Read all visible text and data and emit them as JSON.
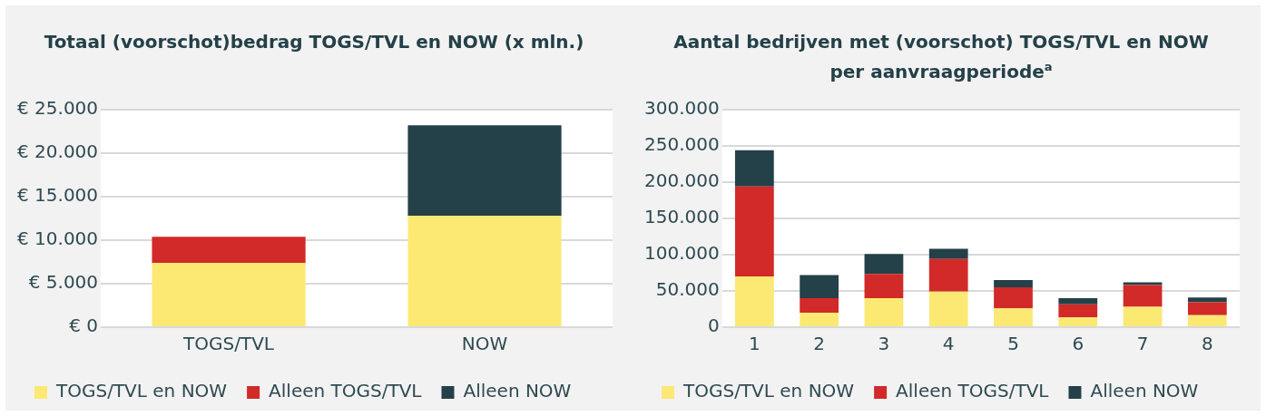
{
  "chart_data": [
    {
      "type": "bar",
      "title": "Totaal (voorschot)bedrag TOGS/TVL en NOW (x mln.)",
      "categories": [
        "TOGS/TVL",
        "NOW"
      ],
      "stacked": true,
      "grid": "y",
      "legend": "bottom",
      "ylim": [
        0,
        25000
      ],
      "yticks": [
        {
          "value": 0,
          "label": "€ 0"
        },
        {
          "value": 5000,
          "label": "€ 5.000"
        },
        {
          "value": 10000,
          "label": "€ 10.000"
        },
        {
          "value": 15000,
          "label": "€ 15.000"
        },
        {
          "value": 20000,
          "label": "€ 20.000"
        },
        {
          "value": 25000,
          "label": "€ 25.000"
        }
      ],
      "series": [
        {
          "name": "TOGS/TVL en NOW",
          "color": "#fbe974",
          "values": [
            7400,
            12800
          ]
        },
        {
          "name": "Alleen TOGS/TVL",
          "color": "#d12a28",
          "values": [
            3000,
            0
          ]
        },
        {
          "name": "Alleen NOW",
          "color": "#244048",
          "values": [
            0,
            10400
          ]
        }
      ]
    },
    {
      "type": "bar",
      "title": "Aantal bedrijven met (voorschot) TOGS/TVL en NOW per aanvraagperiode$^{a}$",
      "categories": [
        "1",
        "2",
        "3",
        "4",
        "5",
        "6",
        "7",
        "8"
      ],
      "stacked": true,
      "grid": "y",
      "legend": "bottom",
      "ylim": [
        0,
        300000
      ],
      "yticks": [
        {
          "value": 0,
          "label": "0"
        },
        {
          "value": 50000,
          "label": "50.000"
        },
        {
          "value": 100000,
          "label": "100.000"
        },
        {
          "value": 150000,
          "label": "150.000"
        },
        {
          "value": 200000,
          "label": "200.000"
        },
        {
          "value": 250000,
          "label": "250.000"
        },
        {
          "value": 300000,
          "label": "300.000"
        }
      ],
      "series": [
        {
          "name": "TOGS/TVL en NOW",
          "color": "#fbe974",
          "values": [
            70000,
            20000,
            40000,
            49000,
            26000,
            13500,
            28000,
            16500
          ]
        },
        {
          "name": "Alleen TOGS/TVL",
          "color": "#d12a28",
          "values": [
            124000,
            20000,
            33500,
            45000,
            29000,
            18000,
            30000,
            18000
          ]
        },
        {
          "name": "Alleen NOW",
          "color": "#244048",
          "values": [
            50000,
            32000,
            27500,
            14000,
            10000,
            8500,
            4000,
            6500
          ]
        }
      ]
    }
  ]
}
